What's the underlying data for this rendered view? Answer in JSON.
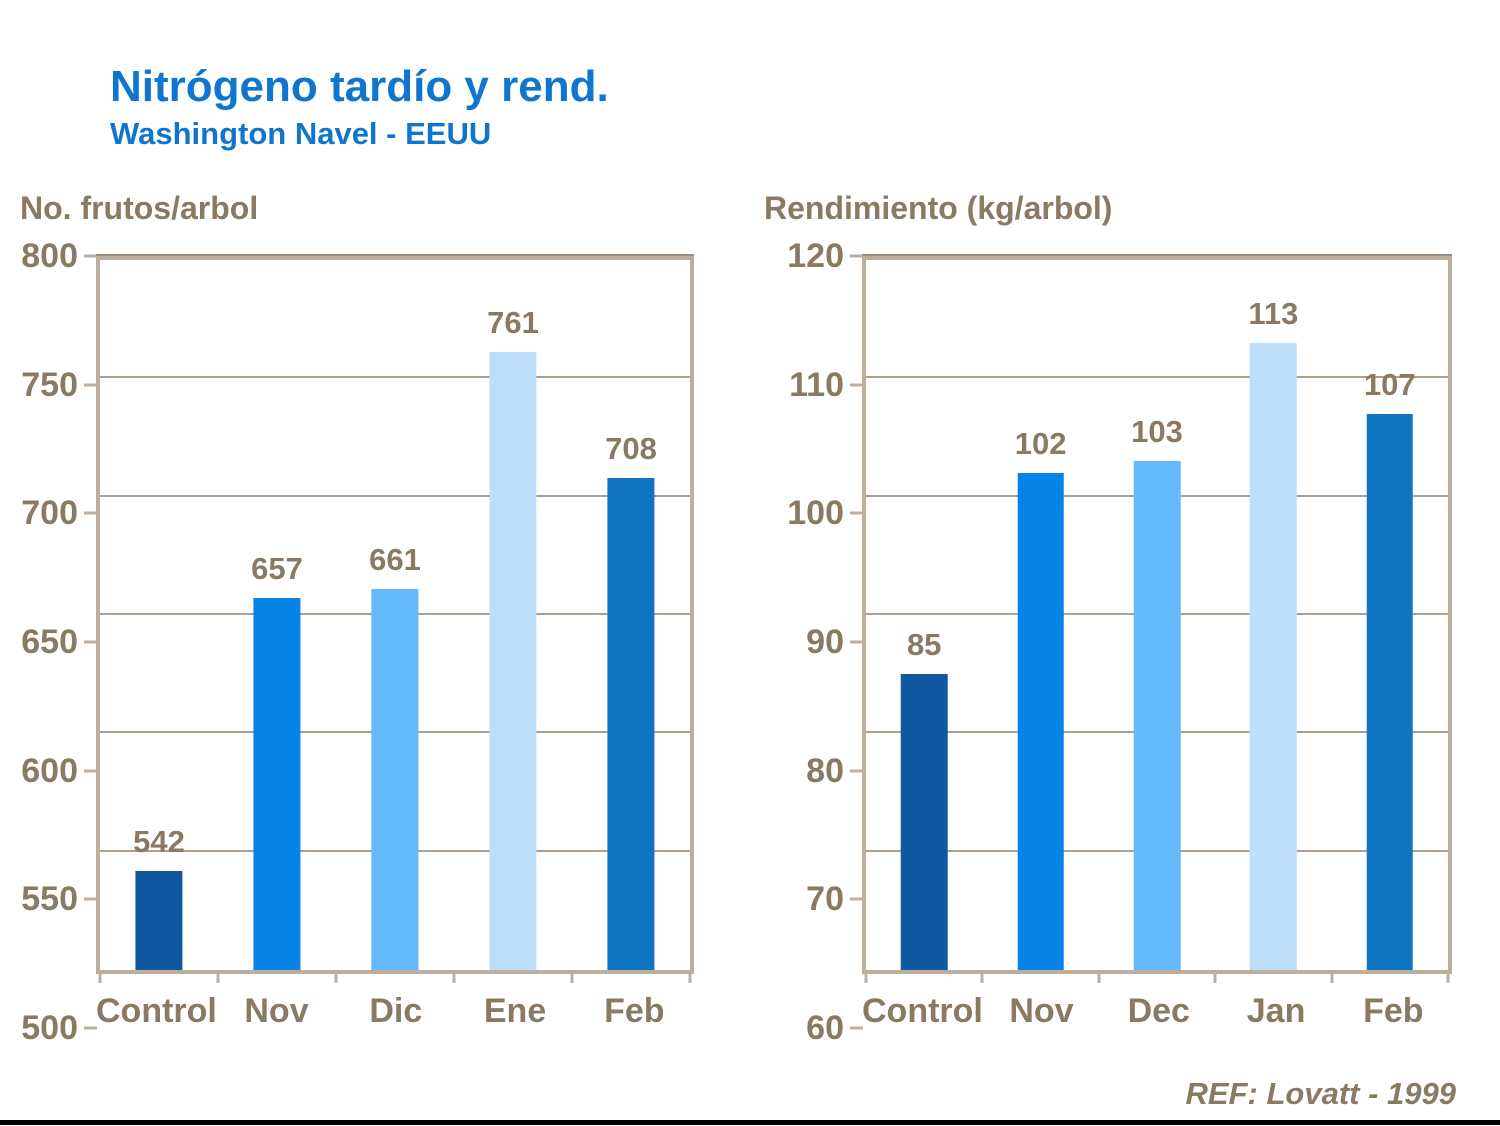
{
  "slide": {
    "title": "Nitrógeno tardío y rend.",
    "subtitle": "Washington Navel - EEUU",
    "reference": "REF: Lovatt - 1999"
  },
  "colors": {
    "title_blue": "#0F76D0",
    "axis_text": "#8A7963",
    "frame": "#BCAF9F",
    "grid": "#AC9F8E",
    "bar_palette": [
      "#10589F",
      "#0583E6",
      "#64B9FB",
      "#BCDFFC",
      "#0F74C2"
    ]
  },
  "chart_data": [
    {
      "type": "bar",
      "title": "No. frutos/arbol",
      "categories": [
        "Control",
        "Nov",
        "Dic",
        "Ene",
        "Feb"
      ],
      "values": [
        542,
        657,
        661,
        761,
        708
      ],
      "data_labels": [
        542,
        657,
        661,
        761,
        708
      ],
      "xlabel": "",
      "ylabel": "No. frutos/arbol",
      "ylim": [
        500,
        800
      ],
      "yticks": [
        500,
        550,
        600,
        650,
        700,
        750,
        800
      ],
      "grid": true,
      "legend": false
    },
    {
      "type": "bar",
      "title": "Rendimiento (kg/arbol)",
      "categories": [
        "Control",
        "Nov",
        "Dec",
        "Jan",
        "Feb"
      ],
      "values": [
        85,
        102,
        103,
        113,
        107
      ],
      "data_labels": [
        85,
        102,
        103,
        113,
        107
      ],
      "xlabel": "",
      "ylabel": "Rendimiento (kg/arbol)",
      "ylim": [
        60,
        120
      ],
      "yticks": [
        60,
        70,
        80,
        90,
        100,
        110,
        120
      ],
      "grid": true,
      "legend": false
    }
  ]
}
